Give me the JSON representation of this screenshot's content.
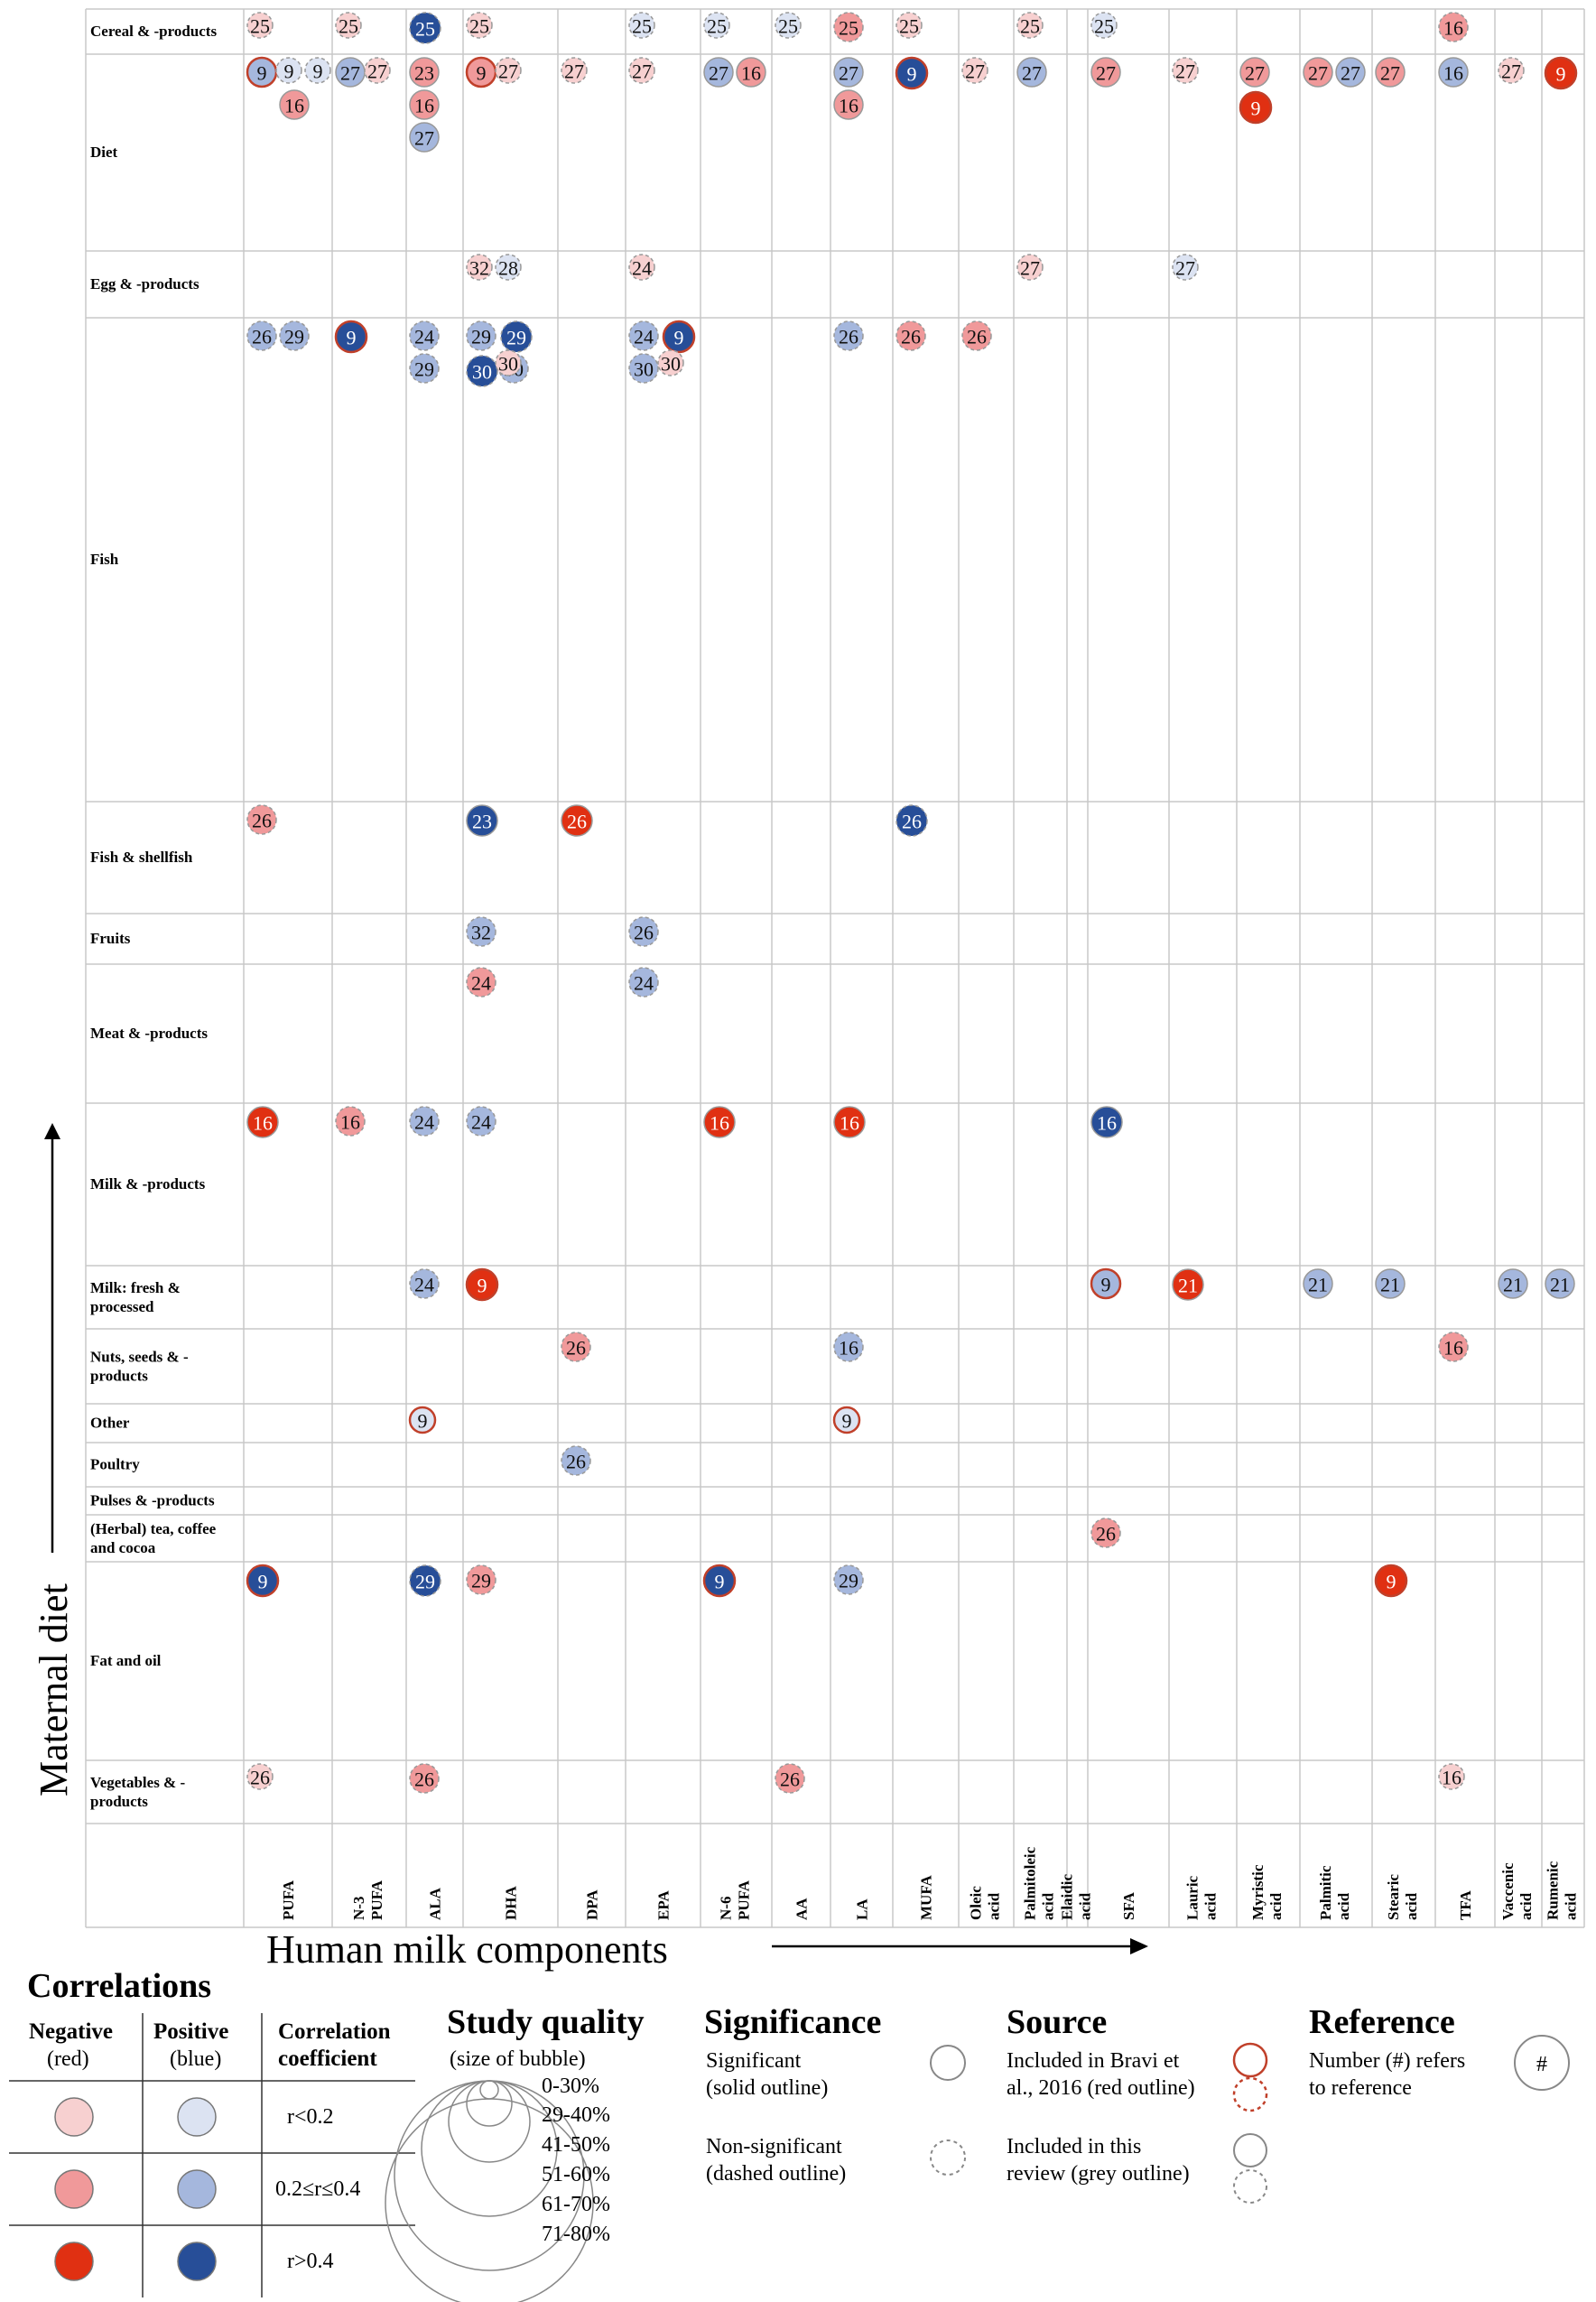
{
  "chart_data": {
    "type": "bubble-matrix",
    "title": "",
    "xlabel": "Human milk components",
    "ylabel": "Maternal diet",
    "columns": [
      "PUFA",
      "N-3 PUFA",
      "ALA",
      "DHA",
      "DPA",
      "EPA",
      "N-6 PUFA",
      "AA",
      "LA",
      "MUFA",
      "Oleic acid",
      "Palmitoleic acid",
      "Elaidic acid",
      "SFA",
      "Lauric acid",
      "Myristic acid",
      "Palmitic acid",
      "Stearic acid",
      "TFA",
      "Vaccenic acid",
      "Rumenic acid"
    ],
    "rows": [
      "Cereal & -products",
      "Diet",
      "Egg & -products",
      "Fish",
      "Fish & shellfish",
      "Fruits",
      "Meat & -products",
      "Milk & -products",
      "Milk: fresh & processed",
      "Nuts, seeds & -products",
      "Other",
      "Poultry",
      "Pulses & -products",
      "(Herbal) tea, coffee and cocoa",
      "Fat and oil",
      "Vegetables & -products"
    ],
    "series_meaning": {
      "direction": [
        "negative",
        "positive"
      ],
      "strength": [
        "r<0.2",
        "0.2≤r≤0.4",
        "r>0.4"
      ]
    },
    "points": [
      {
        "row": "Cereal & -products",
        "col": "PUFA",
        "ref": "25",
        "dir": "neg",
        "str": 0
      },
      {
        "row": "Cereal & -products",
        "col": "N-3 PUFA",
        "ref": "25",
        "dir": "neg",
        "str": 0
      },
      {
        "row": "Cereal & -products",
        "col": "ALA",
        "ref": "25",
        "dir": "pos",
        "str": 2
      },
      {
        "row": "Cereal & -products",
        "col": "DHA",
        "ref": "25",
        "dir": "neg",
        "str": 0
      },
      {
        "row": "Cereal & -products",
        "col": "EPA",
        "ref": "25",
        "dir": "pos",
        "str": 0
      },
      {
        "row": "Cereal & -products",
        "col": "N-6 PUFA",
        "ref": "25",
        "dir": "pos",
        "str": 0
      },
      {
        "row": "Cereal & -products",
        "col": "AA",
        "ref": "25",
        "dir": "pos",
        "str": 0
      },
      {
        "row": "Cereal & -products",
        "col": "LA",
        "ref": "25",
        "dir": "neg",
        "str": 1
      },
      {
        "row": "Cereal & -products",
        "col": "MUFA",
        "ref": "25",
        "dir": "neg",
        "str": 0
      },
      {
        "row": "Cereal & -products",
        "col": "Palmitoleic acid",
        "ref": "25",
        "dir": "neg",
        "str": 0
      },
      {
        "row": "Cereal & -products",
        "col": "SFA",
        "ref": "25",
        "dir": "pos",
        "str": 0
      },
      {
        "row": "Cereal & -products",
        "col": "TFA",
        "ref": "16",
        "dir": "neg",
        "str": 1
      },
      {
        "row": "Diet",
        "col": "PUFA",
        "ref": "9",
        "dir": "pos",
        "str": 1,
        "sig": true,
        "src": "bravi"
      },
      {
        "row": "Diet",
        "col": "PUFA",
        "ref": "9",
        "dir": "pos",
        "str": 0
      },
      {
        "row": "Diet",
        "col": "PUFA",
        "ref": "9",
        "dir": "pos",
        "str": 0
      },
      {
        "row": "Diet",
        "col": "PUFA",
        "ref": "16",
        "dir": "neg",
        "str": 1,
        "sig": true
      },
      {
        "row": "Diet",
        "col": "N-3 PUFA",
        "ref": "27",
        "dir": "pos",
        "str": 1,
        "sig": true
      },
      {
        "row": "Diet",
        "col": "N-3 PUFA",
        "ref": "27",
        "dir": "neg",
        "str": 0
      },
      {
        "row": "Diet",
        "col": "ALA",
        "ref": "23",
        "dir": "neg",
        "str": 1,
        "sig": true
      },
      {
        "row": "Diet",
        "col": "ALA",
        "ref": "16",
        "dir": "neg",
        "str": 1,
        "sig": true
      },
      {
        "row": "Diet",
        "col": "ALA",
        "ref": "27",
        "dir": "pos",
        "str": 1,
        "sig": true
      },
      {
        "row": "Diet",
        "col": "DHA",
        "ref": "9",
        "dir": "neg",
        "str": 1,
        "sig": true,
        "src": "bravi"
      },
      {
        "row": "Diet",
        "col": "DHA",
        "ref": "27",
        "dir": "neg",
        "str": 0
      },
      {
        "row": "Diet",
        "col": "DPA",
        "ref": "27",
        "dir": "neg",
        "str": 0
      },
      {
        "row": "Diet",
        "col": "EPA",
        "ref": "27",
        "dir": "neg",
        "str": 0
      },
      {
        "row": "Diet",
        "col": "N-6 PUFA",
        "ref": "27",
        "dir": "pos",
        "str": 1,
        "sig": true
      },
      {
        "row": "Diet",
        "col": "N-6 PUFA",
        "ref": "16",
        "dir": "neg",
        "str": 1,
        "sig": true
      },
      {
        "row": "Diet",
        "col": "LA",
        "ref": "27",
        "dir": "pos",
        "str": 1,
        "sig": true
      },
      {
        "row": "Diet",
        "col": "LA",
        "ref": "16",
        "dir": "neg",
        "str": 1,
        "sig": true
      },
      {
        "row": "Diet",
        "col": "MUFA",
        "ref": "9",
        "dir": "pos",
        "str": 2,
        "sig": true,
        "src": "bravi"
      },
      {
        "row": "Diet",
        "col": "Oleic acid",
        "ref": "27",
        "dir": "neg",
        "str": 0
      },
      {
        "row": "Diet",
        "col": "Palmitoleic acid",
        "ref": "27",
        "dir": "pos",
        "str": 1,
        "sig": true
      },
      {
        "row": "Diet",
        "col": "SFA",
        "ref": "27",
        "dir": "neg",
        "str": 1,
        "sig": true
      },
      {
        "row": "Diet",
        "col": "Lauric acid",
        "ref": "27",
        "dir": "neg",
        "str": 0
      },
      {
        "row": "Diet",
        "col": "Myristic acid",
        "ref": "27",
        "dir": "neg",
        "str": 1,
        "sig": true
      },
      {
        "row": "Diet",
        "col": "Myristic acid",
        "ref": "9",
        "dir": "neg",
        "str": 2,
        "sig": true,
        "src": "bravi"
      },
      {
        "row": "Diet",
        "col": "Palmitic acid",
        "ref": "27",
        "dir": "neg",
        "str": 1,
        "sig": true
      },
      {
        "row": "Diet",
        "col": "Palmitic acid",
        "ref": "27",
        "dir": "pos",
        "str": 1,
        "sig": true
      },
      {
        "row": "Diet",
        "col": "Stearic acid",
        "ref": "27",
        "dir": "neg",
        "str": 1,
        "sig": true
      },
      {
        "row": "Diet",
        "col": "TFA",
        "ref": "16",
        "dir": "pos",
        "str": 1,
        "sig": true
      },
      {
        "row": "Diet",
        "col": "Vaccenic acid",
        "ref": "27",
        "dir": "neg",
        "str": 0
      },
      {
        "row": "Diet",
        "col": "Rumenic acid",
        "ref": "9",
        "dir": "neg",
        "str": 2,
        "sig": true,
        "src": "bravi"
      },
      {
        "row": "Egg & -products",
        "col": "DHA",
        "ref": "32",
        "dir": "neg",
        "str": 0
      },
      {
        "row": "Egg & -products",
        "col": "DHA",
        "ref": "28",
        "dir": "pos",
        "str": 0
      },
      {
        "row": "Egg & -products",
        "col": "EPA",
        "ref": "24",
        "dir": "neg",
        "str": 0
      },
      {
        "row": "Egg & -products",
        "col": "Palmitoleic acid",
        "ref": "27",
        "dir": "neg",
        "str": 0
      },
      {
        "row": "Egg & -products",
        "col": "Lauric acid",
        "ref": "27",
        "dir": "pos",
        "str": 0
      },
      {
        "row": "Fish",
        "col": "PUFA",
        "ref": "26",
        "dir": "pos",
        "str": 1
      },
      {
        "row": "Fish",
        "col": "PUFA",
        "ref": "29",
        "dir": "pos",
        "str": 1
      },
      {
        "row": "Fish",
        "col": "N-3 PUFA",
        "ref": "9",
        "dir": "pos",
        "str": 2,
        "sig": true,
        "src": "bravi"
      },
      {
        "row": "Fish",
        "col": "ALA",
        "ref": "24",
        "dir": "pos",
        "str": 1
      },
      {
        "row": "Fish",
        "col": "ALA",
        "ref": "29",
        "dir": "pos",
        "str": 1
      },
      {
        "row": "Fish",
        "col": "DHA",
        "ref": "29",
        "dir": "pos",
        "str": 1
      },
      {
        "row": "Fish",
        "col": "DHA",
        "ref": "29",
        "dir": "pos",
        "str": 2
      },
      {
        "row": "Fish",
        "col": "DHA",
        "ref": "30",
        "dir": "pos",
        "str": 2
      },
      {
        "row": "Fish",
        "col": "DHA",
        "ref": "30",
        "dir": "pos",
        "str": 1
      },
      {
        "row": "Fish",
        "col": "DHA",
        "ref": "30",
        "dir": "neg",
        "str": 0
      },
      {
        "row": "Fish",
        "col": "EPA",
        "ref": "24",
        "dir": "pos",
        "str": 1
      },
      {
        "row": "Fish",
        "col": "EPA",
        "ref": "9",
        "dir": "pos",
        "str": 2,
        "sig": true,
        "src": "bravi"
      },
      {
        "row": "Fish",
        "col": "EPA",
        "ref": "30",
        "dir": "pos",
        "str": 1
      },
      {
        "row": "Fish",
        "col": "EPA",
        "ref": "30",
        "dir": "neg",
        "str": 0
      },
      {
        "row": "Fish",
        "col": "LA",
        "ref": "26",
        "dir": "pos",
        "str": 1
      },
      {
        "row": "Fish",
        "col": "MUFA",
        "ref": "26",
        "dir": "neg",
        "str": 1
      },
      {
        "row": "Fish",
        "col": "Oleic acid",
        "ref": "26",
        "dir": "neg",
        "str": 1
      },
      {
        "row": "Fish & shellfish",
        "col": "PUFA",
        "ref": "26",
        "dir": "neg",
        "str": 1
      },
      {
        "row": "Fish & shellfish",
        "col": "DHA",
        "ref": "23",
        "dir": "pos",
        "str": 2,
        "sig": true
      },
      {
        "row": "Fish & shellfish",
        "col": "DPA",
        "ref": "26",
        "dir": "neg",
        "str": 2,
        "sig": true
      },
      {
        "row": "Fish & shellfish",
        "col": "MUFA",
        "ref": "26",
        "dir": "pos",
        "str": 2
      },
      {
        "row": "Fruits",
        "col": "DHA",
        "ref": "32",
        "dir": "pos",
        "str": 1
      },
      {
        "row": "Fruits",
        "col": "EPA",
        "ref": "26",
        "dir": "pos",
        "str": 1
      },
      {
        "row": "Meat & -products",
        "col": "DHA",
        "ref": "24",
        "dir": "neg",
        "str": 1
      },
      {
        "row": "Meat & -products",
        "col": "EPA",
        "ref": "24",
        "dir": "pos",
        "str": 1
      },
      {
        "row": "Milk & -products",
        "col": "PUFA",
        "ref": "16",
        "dir": "neg",
        "str": 2,
        "sig": true
      },
      {
        "row": "Milk & -products",
        "col": "N-3 PUFA",
        "ref": "16",
        "dir": "neg",
        "str": 1
      },
      {
        "row": "Milk & -products",
        "col": "ALA",
        "ref": "24",
        "dir": "pos",
        "str": 1
      },
      {
        "row": "Milk & -products",
        "col": "DHA",
        "ref": "24",
        "dir": "pos",
        "str": 1
      },
      {
        "row": "Milk & -products",
        "col": "N-6 PUFA",
        "ref": "16",
        "dir": "neg",
        "str": 2,
        "sig": true
      },
      {
        "row": "Milk & -products",
        "col": "LA",
        "ref": "16",
        "dir": "neg",
        "str": 2,
        "sig": true
      },
      {
        "row": "Milk & -products",
        "col": "SFA",
        "ref": "16",
        "dir": "pos",
        "str": 2,
        "sig": true
      },
      {
        "row": "Milk: fresh & processed",
        "col": "ALA",
        "ref": "24",
        "dir": "pos",
        "str": 1
      },
      {
        "row": "Milk: fresh & processed",
        "col": "DHA",
        "ref": "9",
        "dir": "neg",
        "str": 2,
        "sig": true,
        "src": "bravi"
      },
      {
        "row": "Milk: fresh & processed",
        "col": "SFA",
        "ref": "9",
        "dir": "pos",
        "str": 1,
        "sig": true,
        "src": "bravi"
      },
      {
        "row": "Milk: fresh & processed",
        "col": "Lauric acid",
        "ref": "21",
        "dir": "neg",
        "str": 2,
        "sig": true
      },
      {
        "row": "Milk: fresh & processed",
        "col": "Palmitic acid",
        "ref": "21",
        "dir": "pos",
        "str": 1,
        "sig": true
      },
      {
        "row": "Milk: fresh & processed",
        "col": "Stearic acid",
        "ref": "21",
        "dir": "pos",
        "str": 1,
        "sig": true
      },
      {
        "row": "Milk: fresh & processed",
        "col": "Vaccenic acid",
        "ref": "21",
        "dir": "pos",
        "str": 1,
        "sig": true
      },
      {
        "row": "Milk: fresh & processed",
        "col": "Rumenic acid",
        "ref": "21",
        "dir": "pos",
        "str": 1,
        "sig": true
      },
      {
        "row": "Nuts, seeds & -products",
        "col": "DPA",
        "ref": "26",
        "dir": "neg",
        "str": 1
      },
      {
        "row": "Nuts, seeds & -products",
        "col": "LA",
        "ref": "16",
        "dir": "pos",
        "str": 1
      },
      {
        "row": "Nuts, seeds & -products",
        "col": "TFA",
        "ref": "16",
        "dir": "neg",
        "str": 1
      },
      {
        "row": "Other",
        "col": "ALA",
        "ref": "9",
        "dir": "pos",
        "str": 0,
        "sig": true,
        "src": "bravi"
      },
      {
        "row": "Other",
        "col": "LA",
        "ref": "9",
        "dir": "pos",
        "str": 0,
        "sig": true,
        "src": "bravi"
      },
      {
        "row": "Poultry",
        "col": "DPA",
        "ref": "26",
        "dir": "pos",
        "str": 1
      },
      {
        "row": "(Herbal) tea, coffee and cocoa",
        "col": "SFA",
        "ref": "26",
        "dir": "neg",
        "str": 1
      },
      {
        "row": "Fat and oil",
        "col": "PUFA",
        "ref": "9",
        "dir": "pos",
        "str": 2,
        "sig": true,
        "src": "bravi"
      },
      {
        "row": "Fat and oil",
        "col": "ALA",
        "ref": "29",
        "dir": "pos",
        "str": 2
      },
      {
        "row": "Fat and oil",
        "col": "DHA",
        "ref": "29",
        "dir": "neg",
        "str": 1
      },
      {
        "row": "Fat and oil",
        "col": "N-6 PUFA",
        "ref": "9",
        "dir": "pos",
        "str": 2,
        "sig": true,
        "src": "bravi"
      },
      {
        "row": "Fat and oil",
        "col": "LA",
        "ref": "29",
        "dir": "pos",
        "str": 1
      },
      {
        "row": "Fat and oil",
        "col": "Stearic acid",
        "ref": "9",
        "dir": "neg",
        "str": 2,
        "sig": true,
        "src": "bravi"
      },
      {
        "row": "Vegetables & -products",
        "col": "PUFA",
        "ref": "26",
        "dir": "neg",
        "str": 0
      },
      {
        "row": "Vegetables & -products",
        "col": "ALA",
        "ref": "26",
        "dir": "neg",
        "str": 1
      },
      {
        "row": "Vegetables & -products",
        "col": "AA",
        "ref": "26",
        "dir": "neg",
        "str": 1
      },
      {
        "row": "Vegetables & -products",
        "col": "TFA",
        "ref": "16",
        "dir": "neg",
        "str": 0
      }
    ]
  },
  "legend": {
    "correlations": {
      "title": "Correlations",
      "negative_label": "Negative",
      "negative_sub": "(red)",
      "positive_label": "Positive",
      "positive_sub": "(blue)",
      "coef_label": "Correlation",
      "coef_label2": "coefficient",
      "rows": [
        "r<0.2",
        "0.2≤r≤0.4",
        "r>0.4"
      ]
    },
    "study_quality": {
      "title": "Study quality",
      "subtitle": "(size of bubble)",
      "levels": [
        "0-30%",
        "29-40%",
        "41-50%",
        "51-60%",
        "61-70%",
        "71-80%"
      ]
    },
    "significance": {
      "title": "Significance",
      "sig_line1": "Significant",
      "sig_line2": "(solid outline)",
      "nonsig_line1": "Non-significant",
      "nonsig_line2": "(dashed outline)"
    },
    "source": {
      "title": "Source",
      "bravi_line1": "Included in Bravi et",
      "bravi_line2": "al., 2016 (red outline)",
      "review_line1": "Included in this",
      "review_line2": "review (grey outline)"
    },
    "reference": {
      "title": "Reference",
      "line1": "Number (#) refers",
      "line2": "to reference",
      "symbol": "#"
    }
  },
  "colors": {
    "neg": [
      "#f7d0d0",
      "#f0999a",
      "#e03012"
    ],
    "pos": [
      "#dce3f2",
      "#a5b7dd",
      "#274e98"
    ],
    "bravi_outline": "#c0402a",
    "review_outline": "#999999"
  }
}
